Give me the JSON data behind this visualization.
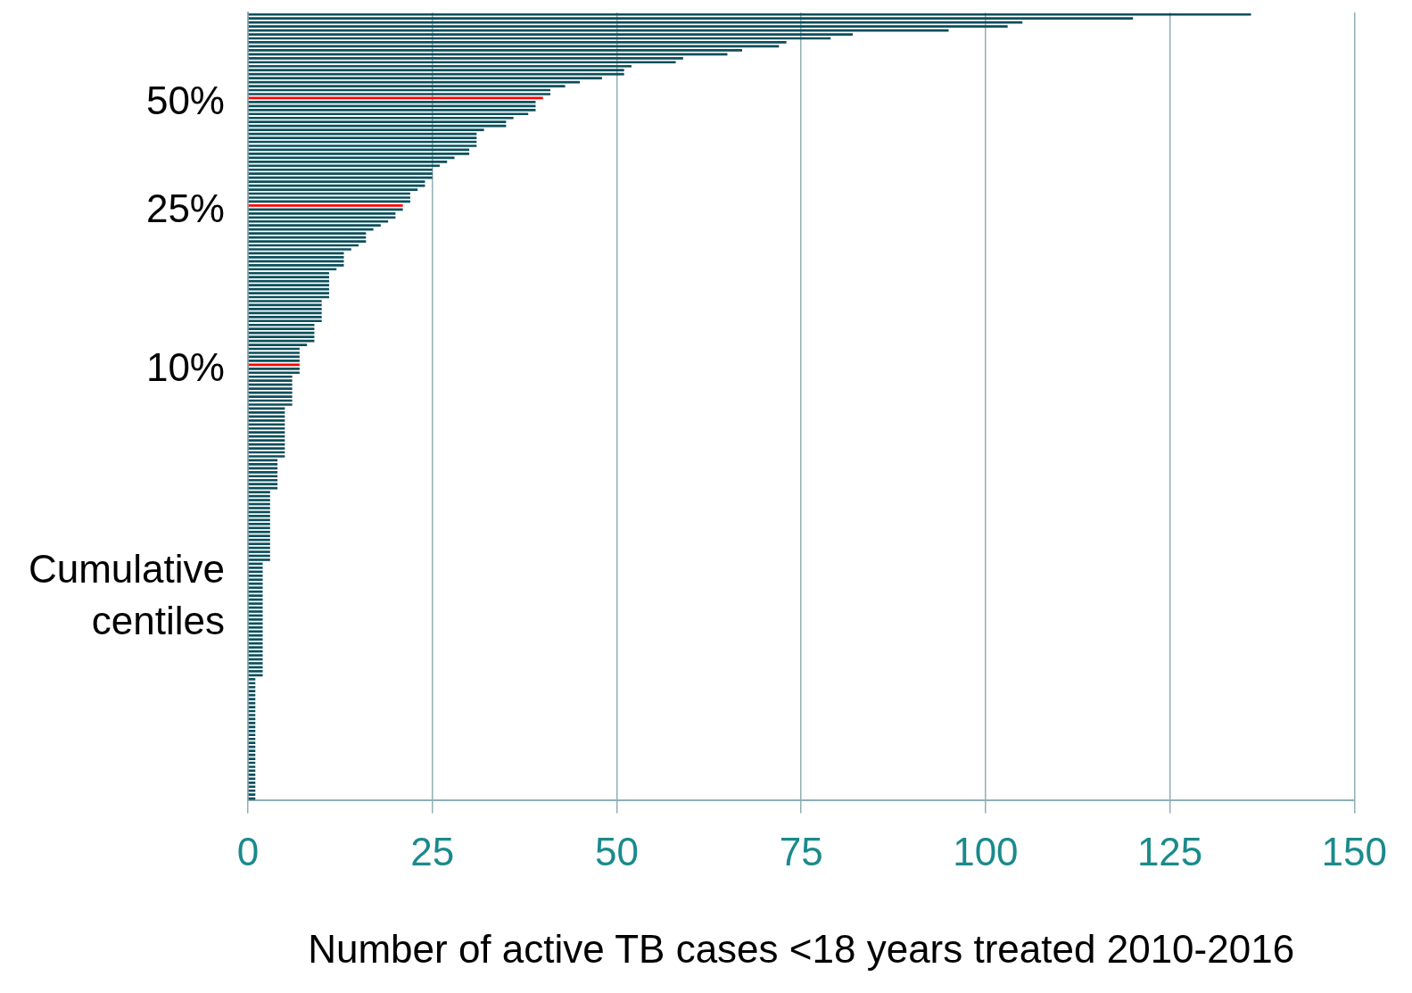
{
  "chart_data": {
    "type": "bar",
    "orientation": "horizontal",
    "xlabel": "Number of active TB cases <18 years treated 2010-2016",
    "annotations": [
      "50%",
      "25%",
      "10%",
      "Cumulative centiles"
    ],
    "categories": [
      null,
      null,
      null,
      null,
      null,
      null,
      null,
      null,
      null,
      null,
      null,
      null,
      null,
      null,
      null,
      null,
      null,
      null,
      null,
      null,
      null,
      null,
      null,
      null,
      null,
      null,
      null,
      null,
      null,
      null,
      null,
      null,
      null,
      null,
      null,
      null,
      null,
      null,
      null,
      null,
      null,
      null,
      null,
      null,
      null,
      null,
      null,
      null,
      null,
      null,
      null,
      null,
      null,
      null,
      null,
      null,
      null,
      null,
      null,
      null,
      null,
      null,
      null,
      null,
      null,
      null,
      null,
      null,
      null,
      null,
      null,
      null,
      null,
      null,
      null,
      null,
      null,
      null,
      null,
      null,
      null,
      null,
      null,
      null,
      null,
      null,
      null,
      null,
      null,
      null,
      null,
      null,
      null,
      null,
      null,
      null,
      null,
      null,
      null,
      null,
      null,
      null,
      null,
      null,
      null,
      null,
      null,
      null,
      null,
      null,
      null,
      null,
      null,
      null,
      null,
      null,
      null,
      null,
      null,
      null,
      null,
      null,
      null,
      null,
      null,
      null,
      null,
      null,
      null,
      null,
      null,
      null,
      null,
      null,
      null,
      null,
      null,
      null,
      null,
      null,
      null,
      null,
      null,
      null,
      null,
      null,
      null,
      null,
      null,
      null,
      null,
      null,
      null,
      null,
      null,
      null,
      null,
      null,
      null,
      null,
      null,
      null,
      null,
      null,
      null,
      null,
      null,
      null,
      null,
      null,
      null,
      null,
      null,
      null,
      null,
      null,
      null,
      null,
      null,
      null,
      null,
      null,
      null,
      null,
      null,
      null,
      null,
      null,
      null,
      null,
      null,
      null,
      null,
      null,
      null,
      null,
      null,
      null
    ],
    "values": [
      136,
      120,
      105,
      103,
      95,
      82,
      79,
      73,
      72,
      67,
      65,
      59,
      58,
      52,
      51,
      51,
      48,
      45,
      43,
      41,
      41,
      40,
      39,
      39,
      39,
      38,
      36,
      35,
      35,
      32,
      31,
      31,
      31,
      31,
      30,
      30,
      28,
      27,
      26,
      25,
      25,
      25,
      24,
      24,
      23,
      22,
      22,
      22,
      21,
      21,
      20,
      20,
      19,
      18,
      17,
      16,
      16,
      16,
      15,
      14,
      13,
      13,
      13,
      13,
      12,
      11,
      11,
      11,
      11,
      11,
      11,
      11,
      10,
      10,
      10,
      10,
      10,
      10,
      9,
      9,
      9,
      9,
      9,
      8,
      7,
      7,
      7,
      7,
      7,
      7,
      7,
      6,
      6,
      6,
      6,
      6,
      6,
      6,
      6,
      5,
      5,
      5,
      5,
      5,
      5,
      5,
      5,
      5,
      5,
      5,
      5,
      5,
      4,
      4,
      4,
      4,
      4,
      4,
      4,
      4,
      3,
      3,
      3,
      3,
      3,
      3,
      3,
      3,
      3,
      3,
      3,
      3,
      3,
      3,
      3,
      3,
      3,
      3,
      2,
      2,
      2,
      2,
      2,
      2,
      2,
      2,
      2,
      2,
      2,
      2,
      2,
      2,
      2,
      2,
      2,
      2,
      2,
      2,
      2,
      2,
      2,
      2,
      2,
      2,
      2,
      2,
      2,
      1,
      1,
      1,
      1,
      1,
      1,
      1,
      1,
      1,
      1,
      1,
      1,
      1,
      1,
      1,
      1,
      1,
      1,
      1,
      1,
      1,
      1,
      1,
      1,
      1,
      1,
      1,
      1,
      1,
      1,
      1
    ],
    "colors": [
      "#0b4f5b",
      "#0b4f5b",
      "#0b4f5b",
      "#0b4f5b",
      "#0b4f5b",
      "#0b4f5b",
      "#0b4f5b",
      "#0b4f5b",
      "#0b4f5b",
      "#0b4f5b",
      "#0b4f5b",
      "#0b4f5b",
      "#0b4f5b",
      "#0b4f5b",
      "#0b4f5b",
      "#0b4f5b",
      "#0b4f5b",
      "#0b4f5b",
      "#0b4f5b",
      "#0b4f5b",
      "#0b4f5b",
      "#ff0000",
      "#0b4f5b",
      "#0b4f5b",
      "#0b4f5b",
      "#0b4f5b",
      "#0b4f5b",
      "#0b4f5b",
      "#0b4f5b",
      "#0b4f5b",
      "#0b4f5b",
      "#0b4f5b",
      "#0b4f5b",
      "#0b4f5b",
      "#0b4f5b",
      "#0b4f5b",
      "#0b4f5b",
      "#0b4f5b",
      "#0b4f5b",
      "#0b4f5b",
      "#0b4f5b",
      "#0b4f5b",
      "#0b4f5b",
      "#0b4f5b",
      "#0b4f5b",
      "#0b4f5b",
      "#0b4f5b",
      "#0b4f5b",
      "#ff0000",
      "#0b4f5b",
      "#0b4f5b",
      "#0b4f5b",
      "#0b4f5b",
      "#0b4f5b",
      "#0b4f5b",
      "#0b4f5b",
      "#0b4f5b",
      "#0b4f5b",
      "#0b4f5b",
      "#0b4f5b",
      "#0b4f5b",
      "#0b4f5b",
      "#0b4f5b",
      "#0b4f5b",
      "#0b4f5b",
      "#0b4f5b",
      "#0b4f5b",
      "#0b4f5b",
      "#0b4f5b",
      "#0b4f5b",
      "#0b4f5b",
      "#0b4f5b",
      "#0b4f5b",
      "#0b4f5b",
      "#0b4f5b",
      "#0b4f5b",
      "#0b4f5b",
      "#0b4f5b",
      "#0b4f5b",
      "#0b4f5b",
      "#0b4f5b",
      "#0b4f5b",
      "#0b4f5b",
      "#0b4f5b",
      "#0b4f5b",
      "#0b4f5b",
      "#0b4f5b",
      "#0b4f5b",
      "#ff0000",
      "#0b4f5b",
      "#0b4f5b",
      "#0b4f5b",
      "#0b4f5b",
      "#0b4f5b",
      "#0b4f5b",
      "#0b4f5b",
      "#0b4f5b",
      "#0b4f5b",
      "#0b4f5b",
      "#0b4f5b",
      "#0b4f5b",
      "#0b4f5b",
      "#0b4f5b",
      "#0b4f5b",
      "#0b4f5b",
      "#0b4f5b",
      "#0b4f5b",
      "#0b4f5b",
      "#0b4f5b",
      "#0b4f5b",
      "#0b4f5b",
      "#0b4f5b",
      "#0b4f5b",
      "#0b4f5b",
      "#0b4f5b",
      "#0b4f5b",
      "#0b4f5b",
      "#0b4f5b",
      "#0b4f5b",
      "#0b4f5b",
      "#0b4f5b",
      "#0b4f5b",
      "#0b4f5b",
      "#0b4f5b",
      "#0b4f5b",
      "#0b4f5b",
      "#0b4f5b",
      "#0b4f5b",
      "#0b4f5b",
      "#0b4f5b",
      "#0b4f5b",
      "#0b4f5b",
      "#0b4f5b",
      "#0b4f5b",
      "#0b4f5b",
      "#0b4f5b",
      "#0b4f5b",
      "#0b4f5b",
      "#0b4f5b",
      "#0b4f5b",
      "#0b4f5b",
      "#0b4f5b",
      "#0b4f5b",
      "#0b4f5b",
      "#0b4f5b",
      "#0b4f5b",
      "#0b4f5b",
      "#0b4f5b",
      "#0b4f5b",
      "#0b4f5b",
      "#0b4f5b",
      "#0b4f5b",
      "#0b4f5b",
      "#0b4f5b",
      "#0b4f5b",
      "#0b4f5b",
      "#0b4f5b",
      "#0b4f5b",
      "#0b4f5b",
      "#0b4f5b",
      "#0b4f5b",
      "#0b4f5b",
      "#0b4f5b",
      "#0b4f5b",
      "#0b4f5b",
      "#0b4f5b",
      "#0b4f5b",
      "#0b4f5b",
      "#0b4f5b",
      "#0b4f5b",
      "#0b4f5b",
      "#0b4f5b",
      "#0b4f5b",
      "#0b4f5b",
      "#0b4f5b",
      "#0b4f5b",
      "#0b4f5b",
      "#0b4f5b",
      "#0b4f5b",
      "#0b4f5b",
      "#0b4f5b",
      "#0b4f5b",
      "#0b4f5b",
      "#0b4f5b",
      "#0b4f5b",
      "#0b4f5b",
      "#0b4f5b",
      "#0b4f5b",
      "#0b4f5b",
      "#0b4f5b",
      "#0b4f5b",
      "#0b4f5b",
      "#0b4f5b",
      "#0b4f5b",
      "#0b4f5b",
      "#0b4f5b",
      "#0b4f5b",
      "#0b4f5b"
    ],
    "xlim": [
      0,
      150
    ],
    "xticks": [
      0,
      25,
      50,
      75,
      100,
      125,
      150
    ],
    "grid": "x",
    "legend": false
  }
}
